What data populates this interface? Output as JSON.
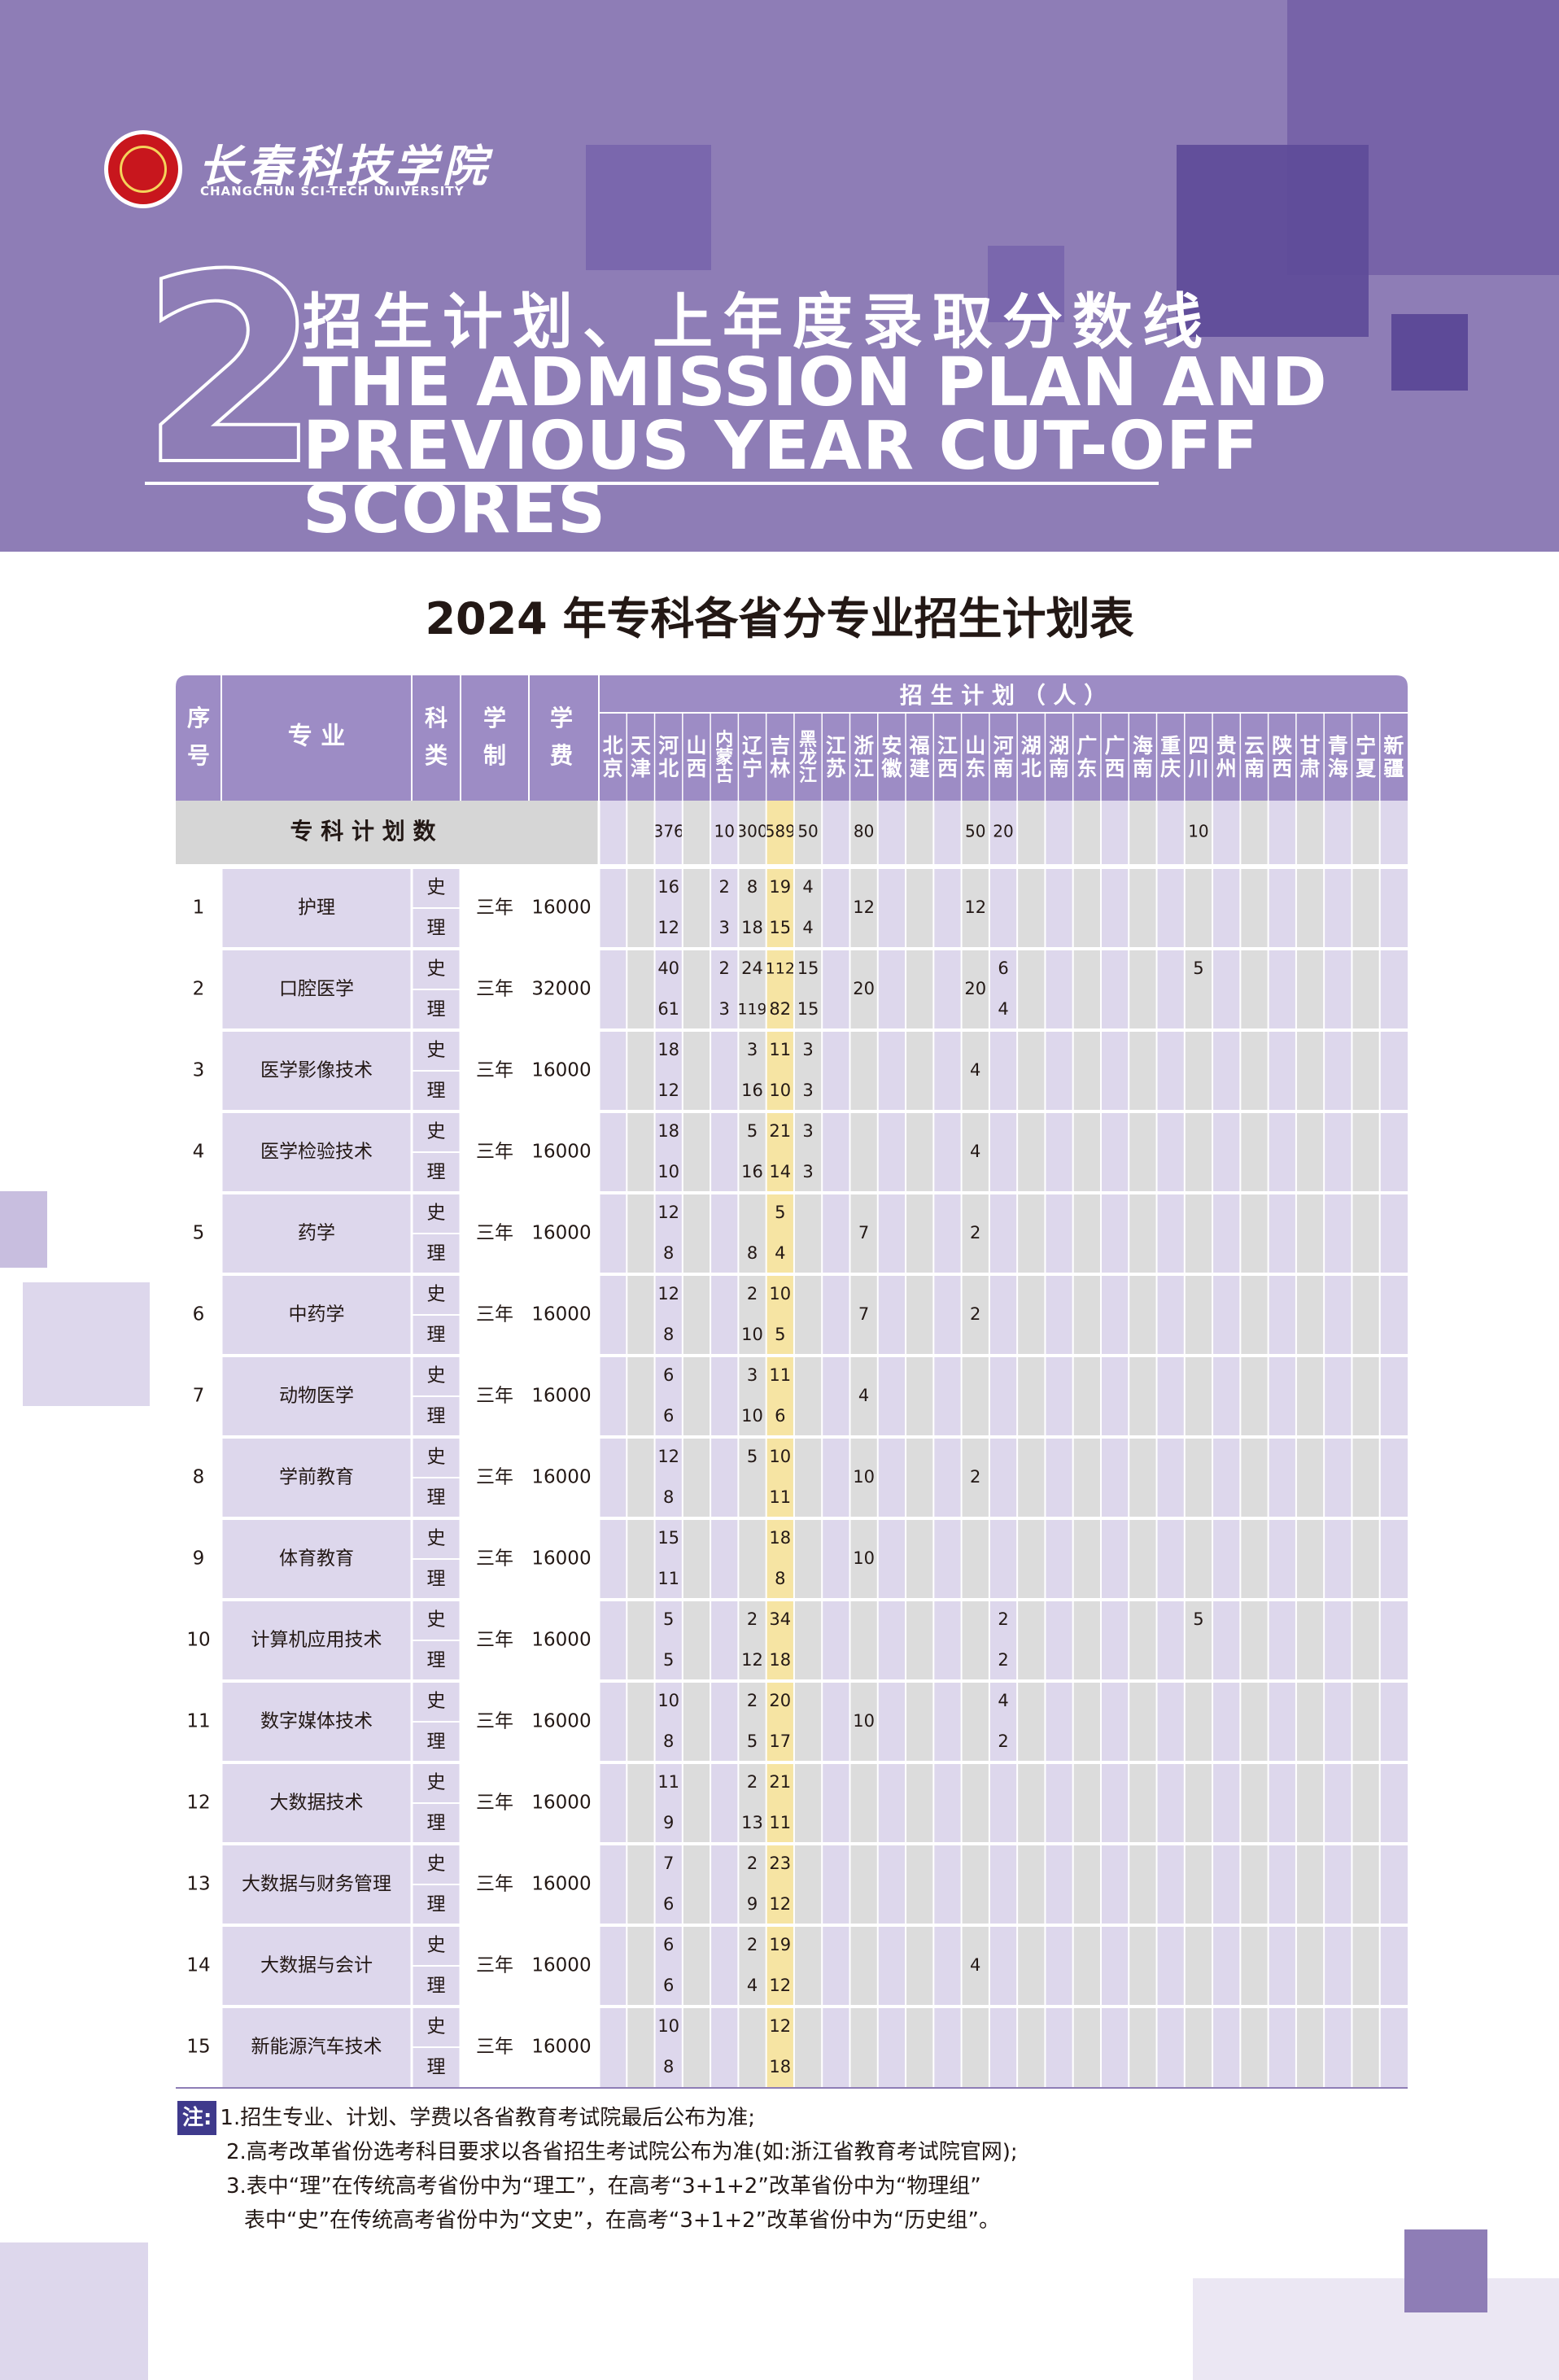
{
  "brand": {
    "name_cn": "长春科技学院",
    "name_en": "CHANGCHUN SCI-TECH UNIVERSITY"
  },
  "section": {
    "number": "2",
    "title_cn": "招生计划、上年度录取分数线",
    "title_en_line1": "THE ADMISSION PLAN AND",
    "title_en_line2": "PREVIOUS YEAR CUT-OFF SCORES"
  },
  "table_title": "2024 年专科各省分专业招生计划表",
  "colors": {
    "header_bg": "#8e7db6",
    "header_dark": "#6f5ca3",
    "table_header": "#9d8cc5",
    "light_purple": "#ddd7ec",
    "jilin_col": "#f6e4a3",
    "grey_col": "#dcdcdc"
  },
  "table": {
    "header": {
      "seq": "序号",
      "major": "专 业",
      "category": "科类",
      "duration": "学制",
      "fee": "学费",
      "plan": "招 生 计 划 （ 人 ）"
    },
    "provinces": [
      "北京",
      "天津",
      "河北",
      "山西",
      "内蒙古",
      "辽宁",
      "吉林",
      "黑龙江",
      "江苏",
      "浙江",
      "安徽",
      "福建",
      "江西",
      "山东",
      "河南",
      "湖北",
      "湖南",
      "广东",
      "广西",
      "海南",
      "重庆",
      "四川",
      "贵州",
      "云南",
      "陕西",
      "甘肃",
      "青海",
      "宁夏",
      "新疆"
    ],
    "total_label": "专 科 计 划 数",
    "totals": [
      "",
      "",
      "376",
      "",
      "10",
      "300",
      "589",
      "50",
      "",
      "80",
      "",
      "",
      "",
      "50",
      "20",
      "",
      "",
      "",
      "",
      "",
      "",
      "10",
      "",
      "",
      "",
      "",
      "",
      "",
      ""
    ],
    "rows": [
      {
        "seq": "1",
        "major": "护理",
        "duration": "三年",
        "fee": "16000",
        "shi": [
          "",
          "",
          "16",
          "",
          "2",
          "8",
          "19",
          "4",
          "",
          "",
          "",
          "",
          "",
          "",
          "",
          "",
          "",
          "",
          "",
          "",
          "",
          "",
          "",
          "",
          "",
          "",
          "",
          "",
          ""
        ],
        "li": [
          "",
          "",
          "12",
          "",
          "3",
          "18",
          "15",
          "4",
          "",
          "",
          "",
          "",
          "",
          "",
          "",
          "",
          "",
          "",
          "",
          "",
          "",
          "",
          "",
          "",
          "",
          "",
          "",
          "",
          ""
        ],
        "merged": {
          "9": "12",
          "13": "12"
        }
      },
      {
        "seq": "2",
        "major": "口腔医学",
        "duration": "三年",
        "fee": "32000",
        "shi": [
          "",
          "",
          "40",
          "",
          "2",
          "24",
          "112",
          "15",
          "",
          "",
          "",
          "",
          "",
          "",
          "6",
          "",
          "",
          "",
          "",
          "",
          "",
          "5",
          "",
          "",
          "",
          "",
          "",
          "",
          ""
        ],
        "li": [
          "",
          "",
          "61",
          "",
          "3",
          "119",
          "82",
          "15",
          "",
          "",
          "",
          "",
          "",
          "",
          "4",
          "",
          "",
          "",
          "",
          "",
          "",
          "",
          "",
          "",
          "",
          "",
          "",
          "",
          ""
        ],
        "merged": {
          "9": "20",
          "13": "20"
        }
      },
      {
        "seq": "3",
        "major": "医学影像技术",
        "duration": "三年",
        "fee": "16000",
        "shi": [
          "",
          "",
          "18",
          "",
          "",
          "3",
          "11",
          "3",
          "",
          "",
          "",
          "",
          "",
          "",
          "",
          "",
          "",
          "",
          "",
          "",
          "",
          "",
          "",
          "",
          "",
          "",
          "",
          "",
          ""
        ],
        "li": [
          "",
          "",
          "12",
          "",
          "",
          "16",
          "10",
          "3",
          "",
          "",
          "",
          "",
          "",
          "",
          "",
          "",
          "",
          "",
          "",
          "",
          "",
          "",
          "",
          "",
          "",
          "",
          "",
          "",
          ""
        ],
        "merged": {
          "13": "4"
        }
      },
      {
        "seq": "4",
        "major": "医学检验技术",
        "duration": "三年",
        "fee": "16000",
        "shi": [
          "",
          "",
          "18",
          "",
          "",
          "5",
          "21",
          "3",
          "",
          "",
          "",
          "",
          "",
          "",
          "",
          "",
          "",
          "",
          "",
          "",
          "",
          "",
          "",
          "",
          "",
          "",
          "",
          "",
          ""
        ],
        "li": [
          "",
          "",
          "10",
          "",
          "",
          "16",
          "14",
          "3",
          "",
          "",
          "",
          "",
          "",
          "",
          "",
          "",
          "",
          "",
          "",
          "",
          "",
          "",
          "",
          "",
          "",
          "",
          "",
          "",
          ""
        ],
        "merged": {
          "13": "4"
        }
      },
      {
        "seq": "5",
        "major": "药学",
        "duration": "三年",
        "fee": "16000",
        "shi": [
          "",
          "",
          "12",
          "",
          "",
          "",
          "5",
          "",
          "",
          "",
          "",
          "",
          "",
          "",
          "",
          "",
          "",
          "",
          "",
          "",
          "",
          "",
          "",
          "",
          "",
          "",
          "",
          "",
          ""
        ],
        "li": [
          "",
          "",
          "8",
          "",
          "",
          "8",
          "4",
          "",
          "",
          "",
          "",
          "",
          "",
          "",
          "",
          "",
          "",
          "",
          "",
          "",
          "",
          "",
          "",
          "",
          "",
          "",
          "",
          "",
          ""
        ],
        "merged": {
          "9": "7",
          "13": "2"
        }
      },
      {
        "seq": "6",
        "major": "中药学",
        "duration": "三年",
        "fee": "16000",
        "shi": [
          "",
          "",
          "12",
          "",
          "",
          "2",
          "10",
          "",
          "",
          "",
          "",
          "",
          "",
          "",
          "",
          "",
          "",
          "",
          "",
          "",
          "",
          "",
          "",
          "",
          "",
          "",
          "",
          "",
          ""
        ],
        "li": [
          "",
          "",
          "8",
          "",
          "",
          "10",
          "5",
          "",
          "",
          "",
          "",
          "",
          "",
          "",
          "",
          "",
          "",
          "",
          "",
          "",
          "",
          "",
          "",
          "",
          "",
          "",
          "",
          "",
          ""
        ],
        "merged": {
          "9": "7",
          "13": "2"
        }
      },
      {
        "seq": "7",
        "major": "动物医学",
        "duration": "三年",
        "fee": "16000",
        "shi": [
          "",
          "",
          "6",
          "",
          "",
          "3",
          "11",
          "",
          "",
          "",
          "",
          "",
          "",
          "",
          "",
          "",
          "",
          "",
          "",
          "",
          "",
          "",
          "",
          "",
          "",
          "",
          "",
          "",
          ""
        ],
        "li": [
          "",
          "",
          "6",
          "",
          "",
          "10",
          "6",
          "",
          "",
          "",
          "",
          "",
          "",
          "",
          "",
          "",
          "",
          "",
          "",
          "",
          "",
          "",
          "",
          "",
          "",
          "",
          "",
          "",
          ""
        ],
        "merged": {
          "9": "4"
        }
      },
      {
        "seq": "8",
        "major": "学前教育",
        "duration": "三年",
        "fee": "16000",
        "shi": [
          "",
          "",
          "12",
          "",
          "",
          "5",
          "10",
          "",
          "",
          "",
          "",
          "",
          "",
          "",
          "",
          "",
          "",
          "",
          "",
          "",
          "",
          "",
          "",
          "",
          "",
          "",
          "",
          "",
          ""
        ],
        "li": [
          "",
          "",
          "8",
          "",
          "",
          "",
          "11",
          "",
          "",
          "",
          "",
          "",
          "",
          "",
          "",
          "",
          "",
          "",
          "",
          "",
          "",
          "",
          "",
          "",
          "",
          "",
          "",
          "",
          ""
        ],
        "merged": {
          "9": "10",
          "13": "2"
        }
      },
      {
        "seq": "9",
        "major": "体育教育",
        "duration": "三年",
        "fee": "16000",
        "shi": [
          "",
          "",
          "15",
          "",
          "",
          "",
          "18",
          "",
          "",
          "",
          "",
          "",
          "",
          "",
          "",
          "",
          "",
          "",
          "",
          "",
          "",
          "",
          "",
          "",
          "",
          "",
          "",
          "",
          ""
        ],
        "li": [
          "",
          "",
          "11",
          "",
          "",
          "",
          "8",
          "",
          "",
          "",
          "",
          "",
          "",
          "",
          "",
          "",
          "",
          "",
          "",
          "",
          "",
          "",
          "",
          "",
          "",
          "",
          "",
          "",
          ""
        ],
        "merged": {
          "9": "10"
        }
      },
      {
        "seq": "10",
        "major": "计算机应用技术",
        "duration": "三年",
        "fee": "16000",
        "shi": [
          "",
          "",
          "5",
          "",
          "",
          "2",
          "34",
          "",
          "",
          "",
          "",
          "",
          "",
          "",
          "2",
          "",
          "",
          "",
          "",
          "",
          "",
          "5",
          "",
          "",
          "",
          "",
          "",
          "",
          ""
        ],
        "li": [
          "",
          "",
          "5",
          "",
          "",
          "12",
          "18",
          "",
          "",
          "",
          "",
          "",
          "",
          "",
          "2",
          "",
          "",
          "",
          "",
          "",
          "",
          "",
          "",
          "",
          "",
          "",
          "",
          "",
          ""
        ],
        "merged": {}
      },
      {
        "seq": "11",
        "major": "数字媒体技术",
        "duration": "三年",
        "fee": "16000",
        "shi": [
          "",
          "",
          "10",
          "",
          "",
          "2",
          "20",
          "",
          "",
          "",
          "",
          "",
          "",
          "",
          "4",
          "",
          "",
          "",
          "",
          "",
          "",
          "",
          "",
          "",
          "",
          "",
          "",
          "",
          ""
        ],
        "li": [
          "",
          "",
          "8",
          "",
          "",
          "5",
          "17",
          "",
          "",
          "",
          "",
          "",
          "",
          "",
          "2",
          "",
          "",
          "",
          "",
          "",
          "",
          "",
          "",
          "",
          "",
          "",
          "",
          "",
          ""
        ],
        "merged": {
          "9": "10"
        }
      },
      {
        "seq": "12",
        "major": "大数据技术",
        "duration": "三年",
        "fee": "16000",
        "shi": [
          "",
          "",
          "11",
          "",
          "",
          "2",
          "21",
          "",
          "",
          "",
          "",
          "",
          "",
          "",
          "",
          "",
          "",
          "",
          "",
          "",
          "",
          "",
          "",
          "",
          "",
          "",
          "",
          "",
          ""
        ],
        "li": [
          "",
          "",
          "9",
          "",
          "",
          "13",
          "11",
          "",
          "",
          "",
          "",
          "",
          "",
          "",
          "",
          "",
          "",
          "",
          "",
          "",
          "",
          "",
          "",
          "",
          "",
          "",
          "",
          "",
          ""
        ],
        "merged": {}
      },
      {
        "seq": "13",
        "major": "大数据与财务管理",
        "duration": "三年",
        "fee": "16000",
        "shi": [
          "",
          "",
          "7",
          "",
          "",
          "2",
          "23",
          "",
          "",
          "",
          "",
          "",
          "",
          "",
          "",
          "",
          "",
          "",
          "",
          "",
          "",
          "",
          "",
          "",
          "",
          "",
          "",
          "",
          ""
        ],
        "li": [
          "",
          "",
          "6",
          "",
          "",
          "9",
          "12",
          "",
          "",
          "",
          "",
          "",
          "",
          "",
          "",
          "",
          "",
          "",
          "",
          "",
          "",
          "",
          "",
          "",
          "",
          "",
          "",
          "",
          ""
        ],
        "merged": {}
      },
      {
        "seq": "14",
        "major": "大数据与会计",
        "duration": "三年",
        "fee": "16000",
        "shi": [
          "",
          "",
          "6",
          "",
          "",
          "2",
          "19",
          "",
          "",
          "",
          "",
          "",
          "",
          "",
          "",
          "",
          "",
          "",
          "",
          "",
          "",
          "",
          "",
          "",
          "",
          "",
          "",
          "",
          ""
        ],
        "li": [
          "",
          "",
          "6",
          "",
          "",
          "4",
          "12",
          "",
          "",
          "",
          "",
          "",
          "",
          "",
          "",
          "",
          "",
          "",
          "",
          "",
          "",
          "",
          "",
          "",
          "",
          "",
          "",
          "",
          ""
        ],
        "merged": {
          "13": "4"
        }
      },
      {
        "seq": "15",
        "major": "新能源汽车技术",
        "duration": "三年",
        "fee": "16000",
        "shi": [
          "",
          "",
          "10",
          "",
          "",
          "",
          "12",
          "",
          "",
          "",
          "",
          "",
          "",
          "",
          "",
          "",
          "",
          "",
          "",
          "",
          "",
          "",
          "",
          "",
          "",
          "",
          "",
          "",
          ""
        ],
        "li": [
          "",
          "",
          "8",
          "",
          "",
          "",
          "18",
          "",
          "",
          "",
          "",
          "",
          "",
          "",
          "",
          "",
          "",
          "",
          "",
          "",
          "",
          "",
          "",
          "",
          "",
          "",
          "",
          "",
          ""
        ],
        "merged": {}
      }
    ],
    "category_shi": "史",
    "category_li": "理"
  },
  "notes": {
    "label": "注:",
    "items": [
      "1.招生专业、计划、学费以各省教育考试院最后公布为准;",
      "2.高考改革省份选考科目要求以各省招生考试院公布为准(如:浙江省教育考试院官网);",
      "3.表中“理”在传统高考省份中为“理工”，在高考“3+1+2”改革省份中为“物理组”",
      "表中“史”在传统高考省份中为“文史”，在高考“3+1+2”改革省份中为“历史组”。"
    ]
  }
}
